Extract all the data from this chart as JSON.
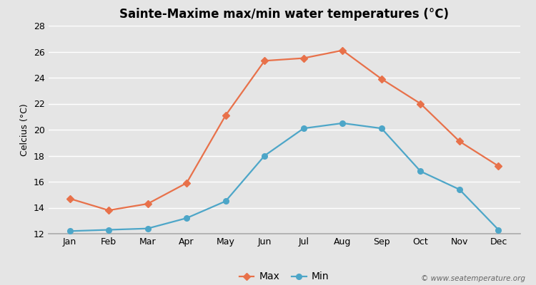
{
  "title": "Sainte-Maxime max/min water temperatures (°C)",
  "ylabel": "Celcius (°C)",
  "months": [
    "Jan",
    "Feb",
    "Mar",
    "Apr",
    "May",
    "Jun",
    "Jul",
    "Aug",
    "Sep",
    "Oct",
    "Nov",
    "Dec"
  ],
  "max_temps": [
    14.7,
    13.8,
    14.3,
    15.9,
    21.1,
    25.3,
    25.5,
    26.1,
    23.9,
    22.0,
    19.1,
    17.2
  ],
  "min_temps": [
    12.2,
    12.3,
    12.4,
    13.2,
    14.5,
    18.0,
    20.1,
    20.5,
    20.1,
    16.8,
    15.4,
    12.3
  ],
  "max_color": "#e8714a",
  "min_color": "#4da6c8",
  "ylim": [
    12,
    28
  ],
  "yticks": [
    12,
    14,
    16,
    18,
    20,
    22,
    24,
    26,
    28
  ],
  "background_color": "#e5e5e5",
  "plot_bg_color": "#e5e5e5",
  "grid_color": "#ffffff",
  "watermark": "© www.seatemperature.org",
  "title_fontsize": 12,
  "label_fontsize": 9,
  "tick_fontsize": 9,
  "legend_fontsize": 10
}
